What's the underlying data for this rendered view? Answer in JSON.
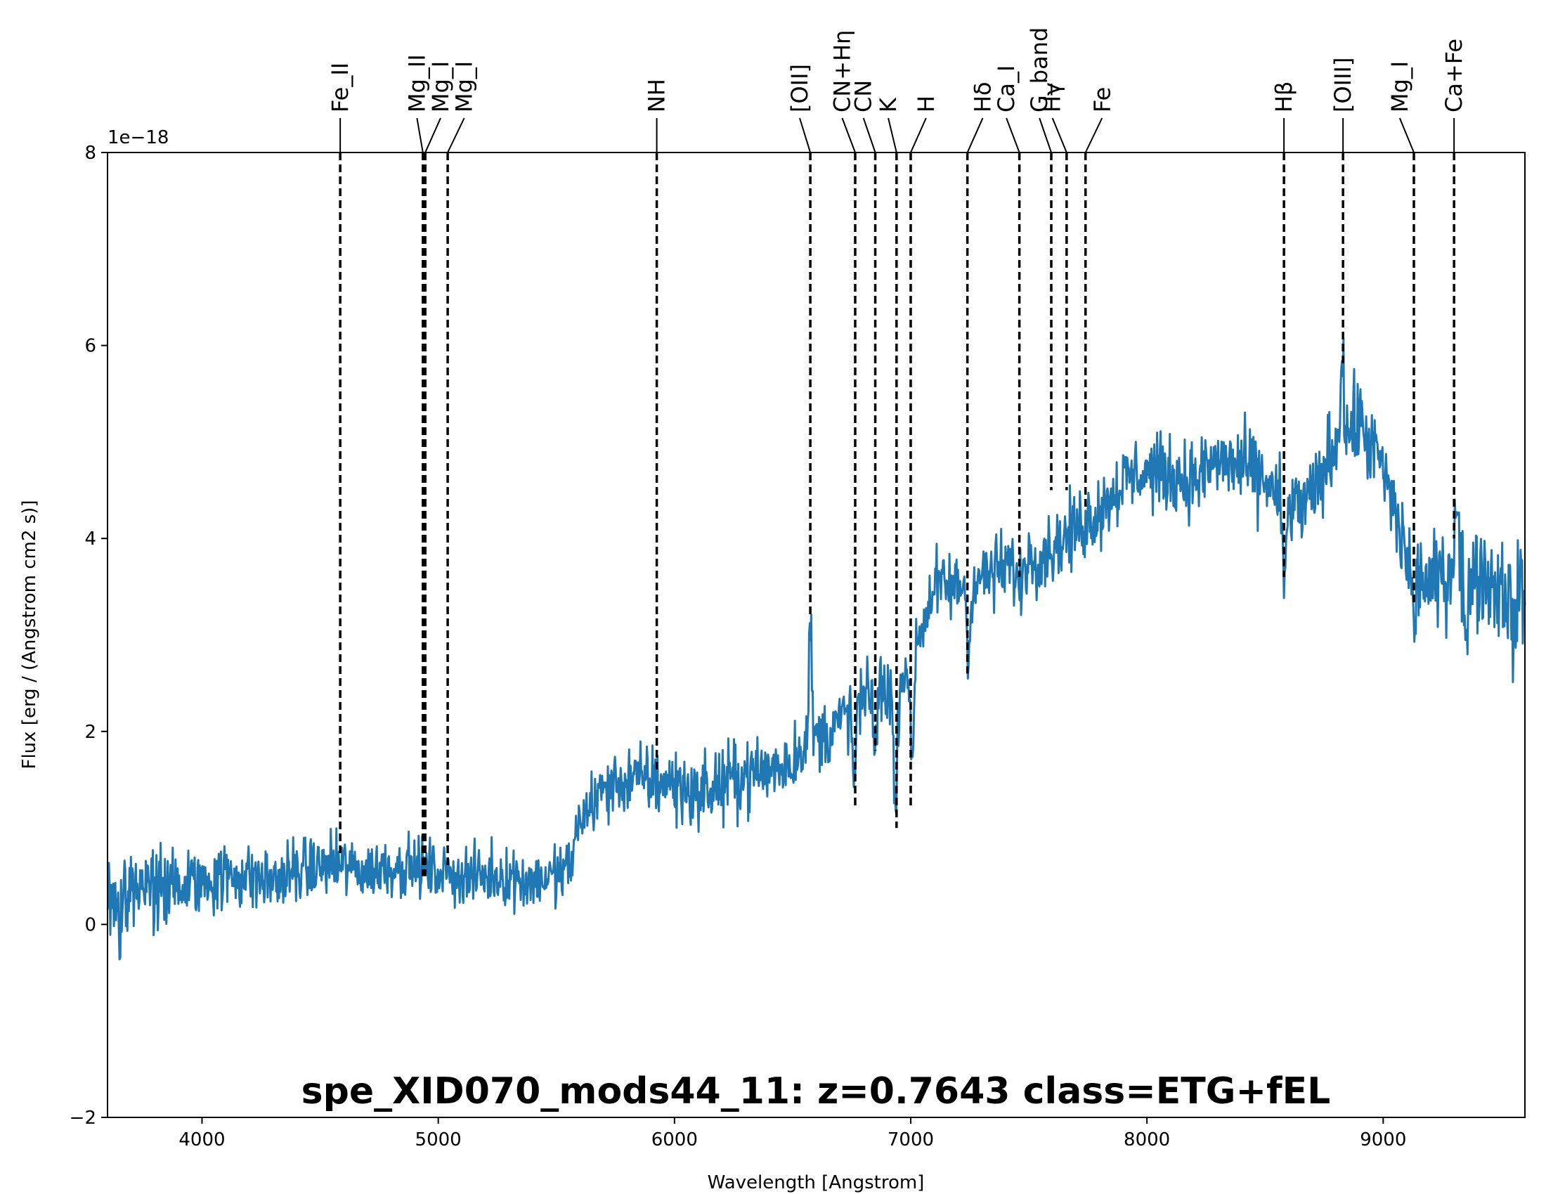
{
  "chart_data": {
    "type": "line",
    "xlabel": "Wavelength [Angstrom]",
    "ylabel": "Flux [erg / (Angstrom cm2 s)]",
    "offset_label": "1e−18",
    "xlim": [
      3600,
      9600
    ],
    "ylim": [
      -2,
      8
    ],
    "x_ticks": [
      4000,
      5000,
      6000,
      7000,
      8000,
      9000
    ],
    "y_ticks": [
      -2,
      0,
      2,
      4,
      6,
      8
    ],
    "x_tick_labels": [
      "4000",
      "5000",
      "6000",
      "7000",
      "8000",
      "9000"
    ],
    "y_tick_labels": [
      "−2",
      "0",
      "2",
      "4",
      "6",
      "8"
    ],
    "annotation": "spe_XID070_mods44_11: z=0.7643 class=ETG+fEL",
    "annotation_color": "#ffa500",
    "series": [
      {
        "color": "#1f77b4",
        "knots": [
          [
            3600,
            0.3
          ],
          [
            3700,
            0.4
          ],
          [
            3800,
            0.35
          ],
          [
            3900,
            0.4
          ],
          [
            4000,
            0.45
          ],
          [
            4100,
            0.5
          ],
          [
            4200,
            0.5
          ],
          [
            4300,
            0.45
          ],
          [
            4400,
            0.55
          ],
          [
            4500,
            0.6
          ],
          [
            4600,
            0.6
          ],
          [
            4700,
            0.55
          ],
          [
            4800,
            0.6
          ],
          [
            4900,
            0.6
          ],
          [
            5000,
            0.55
          ],
          [
            5100,
            0.5
          ],
          [
            5200,
            0.5
          ],
          [
            5300,
            0.5
          ],
          [
            5400,
            0.45
          ],
          [
            5500,
            0.5
          ],
          [
            5560,
            0.6
          ],
          [
            5600,
            1.1
          ],
          [
            5700,
            1.4
          ],
          [
            5800,
            1.5
          ],
          [
            5900,
            1.5
          ],
          [
            6000,
            1.45
          ],
          [
            6100,
            1.35
          ],
          [
            6200,
            1.45
          ],
          [
            6300,
            1.55
          ],
          [
            6400,
            1.6
          ],
          [
            6500,
            1.7
          ],
          [
            6550,
            1.9
          ],
          [
            6650,
            2.0
          ],
          [
            6750,
            2.2
          ],
          [
            6850,
            2.4
          ],
          [
            6950,
            2.5
          ],
          [
            7050,
            3.1
          ],
          [
            7100,
            3.5
          ],
          [
            7200,
            3.5
          ],
          [
            7300,
            3.6
          ],
          [
            7400,
            3.7
          ],
          [
            7500,
            3.8
          ],
          [
            7600,
            3.9
          ],
          [
            7700,
            4.1
          ],
          [
            7800,
            4.3
          ],
          [
            7900,
            4.6
          ],
          [
            8000,
            4.7
          ],
          [
            8100,
            4.65
          ],
          [
            8200,
            4.6
          ],
          [
            8300,
            4.8
          ],
          [
            8400,
            4.75
          ],
          [
            8500,
            4.6
          ],
          [
            8600,
            4.3
          ],
          [
            8700,
            4.4
          ],
          [
            8800,
            5.0
          ],
          [
            8900,
            5.2
          ],
          [
            9000,
            4.7
          ],
          [
            9100,
            3.8
          ],
          [
            9200,
            3.5
          ],
          [
            9300,
            3.7
          ],
          [
            9400,
            3.65
          ],
          [
            9500,
            3.5
          ],
          [
            9600,
            3.4
          ]
        ],
        "noise": [
          [
            3600,
            0.55
          ],
          [
            4000,
            0.4
          ],
          [
            5000,
            0.32
          ],
          [
            5550,
            0.35
          ],
          [
            6000,
            0.42
          ],
          [
            7000,
            0.4
          ],
          [
            8000,
            0.42
          ],
          [
            9000,
            0.5
          ],
          [
            9600,
            0.6
          ]
        ],
        "features": [
          [
            6575,
            1.3,
            5
          ],
          [
            6760,
            -0.9,
            5
          ],
          [
            6850,
            -0.6,
            6
          ],
          [
            6935,
            -1.4,
            7
          ],
          [
            7005,
            -1.3,
            7
          ],
          [
            7245,
            -0.9,
            6
          ],
          [
            7460,
            -0.3,
            10
          ],
          [
            8580,
            -0.8,
            8
          ],
          [
            8825,
            1.0,
            6
          ],
          [
            9130,
            -0.6,
            8
          ],
          [
            9310,
            0.8,
            8
          ],
          [
            9350,
            -1.0,
            6
          ],
          [
            9550,
            -0.5,
            8
          ],
          [
            3650,
            -0.5,
            6
          ]
        ]
      }
    ],
    "spectral_lines": [
      {
        "label": "Fe_II",
        "x": 4585,
        "text_x": 4585,
        "ymin": 0.7
      },
      {
        "label": "Mg_II",
        "x": 4935,
        "text_x": 4910,
        "ymin": 0.5
      },
      {
        "label": "Mg_I",
        "x": 4945,
        "text_x": 5010,
        "ymin": 0.5
      },
      {
        "label": "Mg_I",
        "x": 5040,
        "text_x": 5110,
        "ymin": 0.6
      },
      {
        "label": "NH",
        "x": 5925,
        "text_x": 5925,
        "ymin": 1.6
      },
      {
        "label": "[OII]",
        "x": 6575,
        "text_x": 6530,
        "ymin": 3.2
      },
      {
        "label": "CN+Hη",
        "x": 6765,
        "text_x": 6710,
        "ymin": 1.2
      },
      {
        "label": "CN",
        "x": 6850,
        "text_x": 6800,
        "ymin": 1.8
      },
      {
        "label": "K",
        "x": 6940,
        "text_x": 6905,
        "ymin": 1.0
      },
      {
        "label": "H",
        "x": 7000,
        "text_x": 7065,
        "ymin": 1.2
      },
      {
        "label": "Hδ",
        "x": 7240,
        "text_x": 7305,
        "ymin": 2.6
      },
      {
        "label": "Ca_I",
        "x": 7460,
        "text_x": 7405,
        "ymin": 3.6
      },
      {
        "label": "G_band",
        "x": 7595,
        "text_x": 7545,
        "ymin": 4.5
      },
      {
        "label": "Hγ",
        "x": 7660,
        "text_x": 7600,
        "ymin": 4.5
      },
      {
        "label": "Fe",
        "x": 7740,
        "text_x": 7810,
        "ymin": 4.3
      },
      {
        "label": "Hβ",
        "x": 8580,
        "text_x": 8580,
        "ymin": 3.6
      },
      {
        "label": "[OIII]",
        "x": 8830,
        "text_x": 8830,
        "ymin": 5.8
      },
      {
        "label": "Mg_I",
        "x": 9130,
        "text_x": 9070,
        "ymin": 3.3
      },
      {
        "label": "Ca+Fe",
        "x": 9300,
        "text_x": 9300,
        "ymin": 4.0
      }
    ]
  }
}
